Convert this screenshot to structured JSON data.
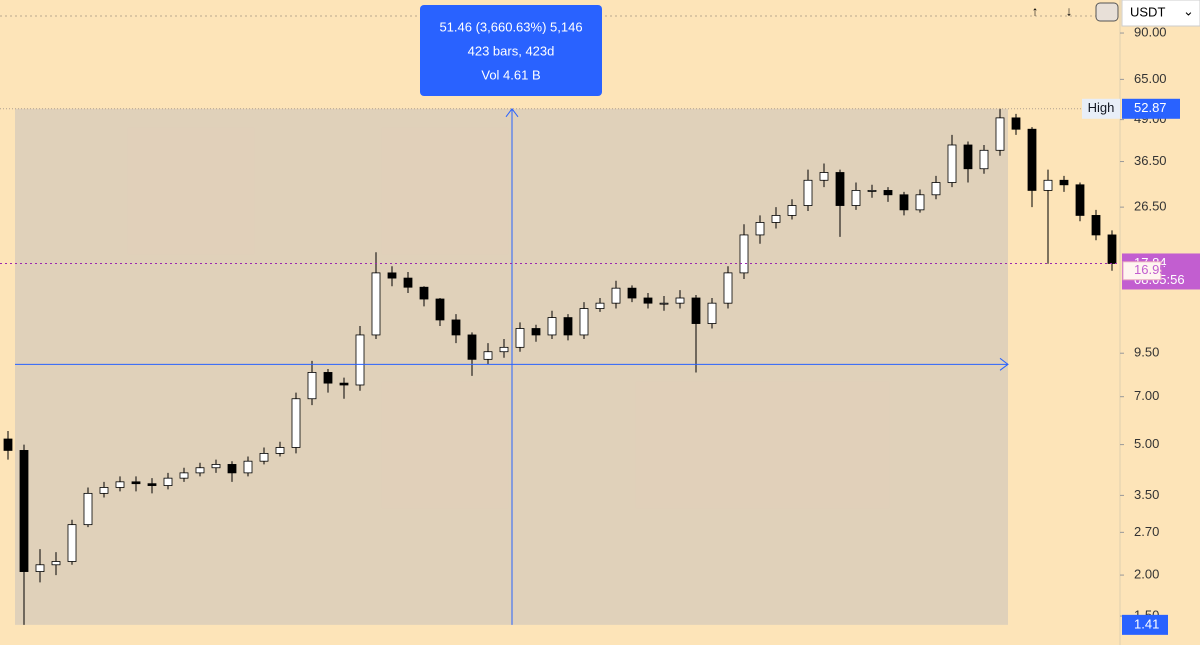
{
  "chart_data": {
    "type": "candlestick",
    "log_scale": true,
    "ylim": [
      1.224,
      113.5
    ],
    "yticks": [
      {
        "value": 1.5,
        "label": "1.50"
      },
      {
        "value": 2,
        "label": "2.00"
      },
      {
        "value": 2.7,
        "label": "2.70"
      },
      {
        "value": 3.5,
        "label": "3.50"
      },
      {
        "value": 5,
        "label": "5.00"
      },
      {
        "value": 7,
        "label": "7.00"
      },
      {
        "value": 9.5,
        "label": "9.50"
      },
      {
        "value": 26.5,
        "label": "26.50"
      },
      {
        "value": 36.5,
        "label": "36.50"
      },
      {
        "value": 49,
        "label": "49.00"
      },
      {
        "value": 65,
        "label": "65.00"
      },
      {
        "value": 90,
        "label": "90.00"
      }
    ],
    "open": [
      5.2,
      4.8,
      2.05,
      2.15,
      2.2,
      2.85,
      3.55,
      3.7,
      3.85,
      3.8,
      3.75,
      3.95,
      4.1,
      4.25,
      4.35,
      4.1,
      4.45,
      4.7,
      4.9,
      6.9,
      8.3,
      7.7,
      7.6,
      10.8,
      16.7,
      16.1,
      15.1,
      13.9,
      12.0,
      10.8,
      9.1,
      9.6,
      9.9,
      11.3,
      10.8,
      12.2,
      10.8,
      13.0,
      13.5,
      15.0,
      14.0,
      13.5,
      13.5,
      14.0,
      11.7,
      13.5,
      16.7,
      21.8,
      23.8,
      25.0,
      26.8,
      32.0,
      33.8,
      26.8,
      29.8,
      29.8,
      28.9,
      26.0,
      28.9,
      31.5,
      41.0,
      34.7,
      39.5,
      49.6,
      45.8,
      29.8,
      32.0,
      31.0,
      25.0,
      21.8
    ],
    "high": [
      5.5,
      5.0,
      2.4,
      2.35,
      2.95,
      3.7,
      3.85,
      4.0,
      4.0,
      3.95,
      4.1,
      4.25,
      4.4,
      4.5,
      4.45,
      4.6,
      4.9,
      5.1,
      7.2,
      9.0,
      8.5,
      8.0,
      11.5,
      19.3,
      17.5,
      16.8,
      15.2,
      14.0,
      12.5,
      11.0,
      10.2,
      10.5,
      11.8,
      11.6,
      12.8,
      12.5,
      13.6,
      14.0,
      15.8,
      15.3,
      14.5,
      14.2,
      14.8,
      14.3,
      14.0,
      17.5,
      23.5,
      25.0,
      26.5,
      28.0,
      34.5,
      36.0,
      34.5,
      31.5,
      31.0,
      30.5,
      29.5,
      30.0,
      33.0,
      44.0,
      42.0,
      41.0,
      52.87,
      51.0,
      46.5,
      34.5,
      33.0,
      31.5,
      26.0,
      22.5
    ],
    "low": [
      4.5,
      1.41,
      1.9,
      2.0,
      2.15,
      2.8,
      3.45,
      3.6,
      3.6,
      3.55,
      3.65,
      3.85,
      4.0,
      4.1,
      3.85,
      4.0,
      4.35,
      4.6,
      4.7,
      6.6,
      7.2,
      6.9,
      7.3,
      10.5,
      15.2,
      14.5,
      13.2,
      11.5,
      10.2,
      8.1,
      8.8,
      9.2,
      9.6,
      10.3,
      10.5,
      10.4,
      10.5,
      12.7,
      13.0,
      13.6,
      13.0,
      12.8,
      13.0,
      8.3,
      11.3,
      13.0,
      16.0,
      20.5,
      22.8,
      24.3,
      25.8,
      30.5,
      21.5,
      26.0,
      28.3,
      27.5,
      25.0,
      25.5,
      28.0,
      30.5,
      31.5,
      33.5,
      38.0,
      44.0,
      26.5,
      17.8,
      29.5,
      24.0,
      21.0,
      16.95
    ],
    "close": [
      4.8,
      2.05,
      2.15,
      2.2,
      2.85,
      3.55,
      3.7,
      3.85,
      3.8,
      3.75,
      3.95,
      4.1,
      4.25,
      4.35,
      4.1,
      4.45,
      4.7,
      4.9,
      6.9,
      8.3,
      7.7,
      7.6,
      10.8,
      16.7,
      16.1,
      15.1,
      13.9,
      12.0,
      10.8,
      9.1,
      9.6,
      9.9,
      11.3,
      10.8,
      12.2,
      10.8,
      13.0,
      13.5,
      15.0,
      14.0,
      13.5,
      13.5,
      14.0,
      11.7,
      13.5,
      16.7,
      21.8,
      23.8,
      25.0,
      26.8,
      32.0,
      33.8,
      26.8,
      29.8,
      29.8,
      28.9,
      26.0,
      28.9,
      31.5,
      41.0,
      34.7,
      39.5,
      49.6,
      45.8,
      29.8,
      32.0,
      31.0,
      25.0,
      21.8,
      17.84
    ],
    "up_color": "#ffffff",
    "down_color": "#000000",
    "high_marker": {
      "label": "High",
      "value": 52.87
    },
    "low_marker": 1.41,
    "last_price": 17.84,
    "countdown": "08:05:56",
    "alt_price": 16.95,
    "measure": {
      "line1": "51.46 (3,660.63%) 5,146",
      "line2": "423 bars, 423d",
      "line3": "Vol 4.61 B"
    },
    "currency": "USDT"
  }
}
